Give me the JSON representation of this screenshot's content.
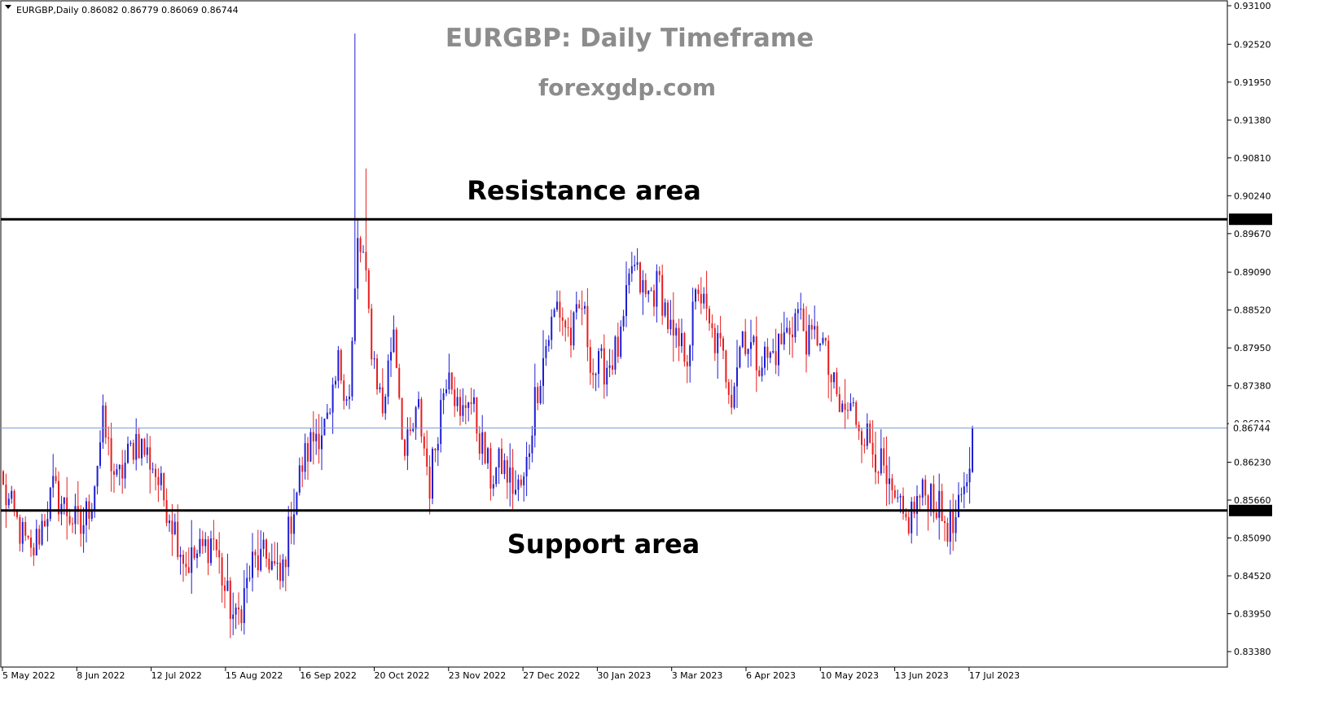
{
  "header": {
    "symbol_info": "EURGBP,Daily  0.86082 0.86779 0.86069 0.86744"
  },
  "overlay": {
    "title": "EURGBP: Daily Timeframe",
    "subtitle": "forexgdp.com",
    "resistance_label": "Resistance area",
    "support_label": "Support area"
  },
  "colors": {
    "bull": "#1e1ed2",
    "bear": "#e61e1e",
    "level_line": "#000000",
    "current_line": "#7f9bd4",
    "title": "#8c8c8c"
  },
  "chart_data": {
    "type": "candlestick",
    "title": "EURGBP: Daily Timeframe",
    "subtitle": "forexgdp.com",
    "symbol": "EURGBP",
    "timeframe": "Daily",
    "last_bar": {
      "open": 0.86082,
      "high": 0.86779,
      "low": 0.86069,
      "close": 0.86744
    },
    "ylim": [
      0.833,
      0.931
    ],
    "y_ticks": [
      "0.93100",
      "0.92520",
      "0.91950",
      "0.91380",
      "0.90810",
      "0.90240",
      "0.89670",
      "0.89090",
      "0.88520",
      "0.87950",
      "0.87380",
      "0.86810",
      "0.86230",
      "0.85660",
      "0.85090",
      "0.84520",
      "0.83950",
      "0.83380"
    ],
    "x_ticks": [
      "5 May 2022",
      "8 Jun 2022",
      "12 Jul 2022",
      "15 Aug 2022",
      "16 Sep 2022",
      "20 Oct 2022",
      "23 Nov 2022",
      "27 Dec 2022",
      "30 Jan 2023",
      "3 Mar 2023",
      "6 Apr 2023",
      "10 May 2023",
      "13 Jun 2023",
      "17 Jul 2023"
    ],
    "levels": [
      {
        "name": "Resistance area",
        "value": 0.89886
      },
      {
        "name": "Support area",
        "value": 0.85503
      }
    ],
    "current_price": 0.86744,
    "grid": false,
    "anchors": [
      [
        0,
        0.858
      ],
      [
        10,
        0.848
      ],
      [
        18,
        0.858
      ],
      [
        28,
        0.852
      ],
      [
        32,
        0.857
      ],
      [
        36,
        0.868
      ],
      [
        41,
        0.859
      ],
      [
        48,
        0.866
      ],
      [
        54,
        0.862
      ],
      [
        57,
        0.858
      ],
      [
        60,
        0.855
      ],
      [
        66,
        0.847
      ],
      [
        72,
        0.849
      ],
      [
        76,
        0.851
      ],
      [
        80,
        0.843
      ],
      [
        84,
        0.838
      ],
      [
        90,
        0.847
      ],
      [
        96,
        0.848
      ],
      [
        100,
        0.844
      ],
      [
        104,
        0.854
      ],
      [
        108,
        0.862
      ],
      [
        113,
        0.867
      ],
      [
        118,
        0.868
      ],
      [
        121,
        0.877
      ],
      [
        125,
        0.872
      ],
      [
        128,
        0.895
      ],
      [
        130,
        0.893
      ],
      [
        133,
        0.88
      ],
      [
        137,
        0.87
      ],
      [
        141,
        0.883
      ],
      [
        145,
        0.863
      ],
      [
        150,
        0.87
      ],
      [
        154,
        0.859
      ],
      [
        158,
        0.871
      ],
      [
        161,
        0.878
      ],
      [
        165,
        0.868
      ],
      [
        168,
        0.873
      ],
      [
        172,
        0.866
      ],
      [
        176,
        0.86
      ],
      [
        180,
        0.862
      ],
      [
        185,
        0.858
      ],
      [
        188,
        0.859
      ],
      [
        190,
        0.865
      ],
      [
        192,
        0.872
      ],
      [
        196,
        0.88
      ],
      [
        200,
        0.886
      ],
      [
        205,
        0.881
      ],
      [
        209,
        0.886
      ],
      [
        213,
        0.876
      ],
      [
        218,
        0.877
      ],
      [
        223,
        0.88
      ],
      [
        227,
        0.892
      ],
      [
        232,
        0.887
      ],
      [
        237,
        0.889
      ],
      [
        242,
        0.88
      ],
      [
        247,
        0.879
      ],
      [
        251,
        0.889
      ],
      [
        255,
        0.882
      ],
      [
        259,
        0.879
      ],
      [
        263,
        0.873
      ],
      [
        267,
        0.882
      ],
      [
        272,
        0.878
      ],
      [
        277,
        0.878
      ],
      [
        282,
        0.881
      ],
      [
        287,
        0.885
      ],
      [
        291,
        0.88
      ],
      [
        295,
        0.882
      ],
      [
        298,
        0.876
      ],
      [
        302,
        0.87
      ],
      [
        307,
        0.87
      ],
      [
        312,
        0.866
      ],
      [
        316,
        0.863
      ],
      [
        320,
        0.857
      ],
      [
        326,
        0.853
      ],
      [
        331,
        0.857
      ],
      [
        335,
        0.858
      ],
      [
        339,
        0.854
      ],
      [
        343,
        0.852
      ],
      [
        347,
        0.857
      ],
      [
        350,
        0.866
      ]
    ]
  }
}
